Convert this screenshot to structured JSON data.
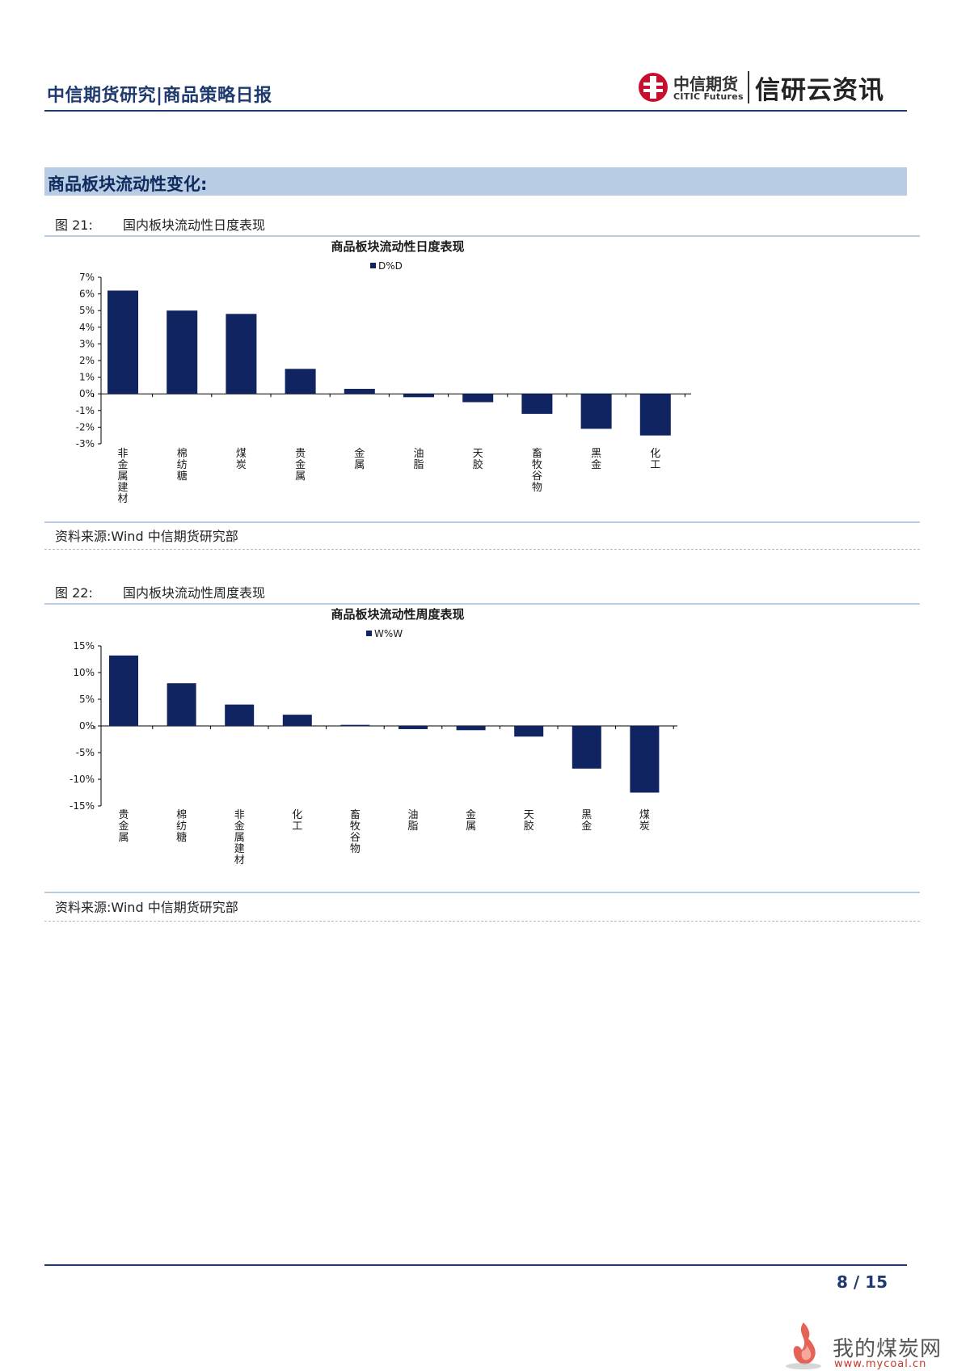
{
  "header": {
    "title": "中信期货研究|商品策略日报",
    "logo_cn": "中信期货",
    "logo_en": "CITIC Futures",
    "slogan": "信研云资讯"
  },
  "section": {
    "title": "商品板块流动性变化:"
  },
  "figures": [
    {
      "number": "图 21:",
      "title": "国内板块流动性日度表现",
      "source": "资料来源:Wind 中信期货研究部"
    },
    {
      "number": "图 22:",
      "title": "国内板块流动性周度表现",
      "source": "资料来源:Wind 中信期货研究部"
    }
  ],
  "chart_data": [
    {
      "type": "bar",
      "title": "商品板块流动性日度表现",
      "legend": "D%D",
      "legend_position": "top",
      "grid": false,
      "bar_color": "#0f2461",
      "categories": [
        "非金属建材",
        "棉纺糖",
        "煤炭",
        "贵金属",
        "金属",
        "油脂",
        "天胶",
        "畜牧谷物",
        "黑金",
        "化工"
      ],
      "values": [
        6.2,
        5.0,
        4.8,
        1.5,
        0.3,
        -0.2,
        -0.5,
        -1.2,
        -2.1,
        -2.5
      ],
      "ylim": [
        -3,
        7
      ],
      "yticks": [
        "7%",
        "6%",
        "5%",
        "4%",
        "3%",
        "2%",
        "1%",
        "0%",
        "-1%",
        "-2%",
        "-3%"
      ]
    },
    {
      "type": "bar",
      "title": "商品板块流动性周度表现",
      "legend": "W%W",
      "legend_position": "top",
      "grid": false,
      "bar_color": "#0f2461",
      "categories": [
        "贵金属",
        "棉纺糖",
        "非金属建材",
        "化工",
        "畜牧谷物",
        "油脂",
        "金属",
        "天胶",
        "黑金",
        "煤炭"
      ],
      "values": [
        13.2,
        8.0,
        4.0,
        2.1,
        0.2,
        -0.6,
        -0.8,
        -2.0,
        -8.0,
        -12.5
      ],
      "ylim": [
        -15,
        15
      ],
      "yticks": [
        "15%",
        "10%",
        "5%",
        "0%",
        "-5%",
        "-10%",
        "-15%"
      ]
    }
  ],
  "footer": {
    "page": "8 / 15"
  },
  "watermark": {
    "cn": "我的煤炭网",
    "url": "www.mycoal.cn"
  }
}
